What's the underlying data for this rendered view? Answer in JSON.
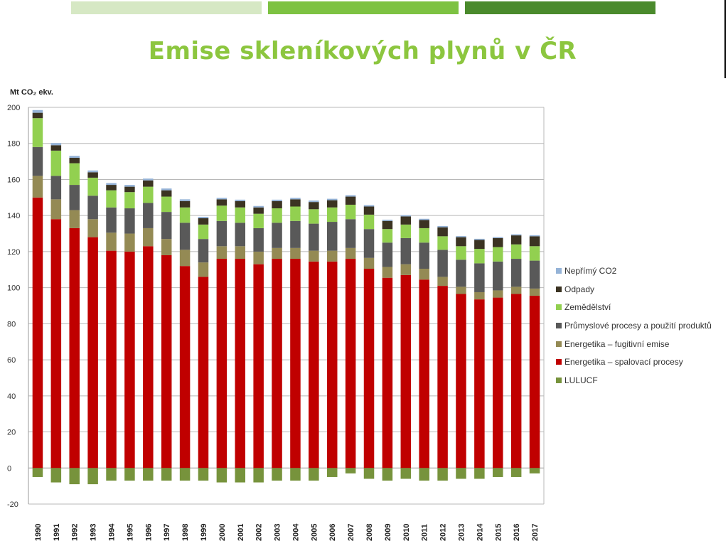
{
  "header": {
    "title": "Emise skleníkových plynů v ČR",
    "accent_colors": [
      "#d6e8c4",
      "#7dc242",
      "#4a8a2c"
    ]
  },
  "chart_data": {
    "type": "bar",
    "stacked": true,
    "title": "Emise skleníkových plynů v ČR",
    "ylabel": "Mt CO₂ ekv.",
    "xlabel": "",
    "ylim": [
      -20,
      200
    ],
    "yticks": [
      -20,
      0,
      20,
      40,
      60,
      80,
      100,
      120,
      140,
      160,
      180,
      200
    ],
    "grid": true,
    "legend_position": "right",
    "categories": [
      "1990",
      "1991",
      "1992",
      "1993",
      "1994",
      "1995",
      "1996",
      "1997",
      "1998",
      "1999",
      "2000",
      "2001",
      "2002",
      "2003",
      "2004",
      "2005",
      "2006",
      "2007",
      "2008",
      "2009",
      "2010",
      "2011",
      "2012",
      "2013",
      "2014",
      "2015",
      "2016",
      "2017"
    ],
    "series": [
      {
        "name": "LULUCF",
        "color": "#77933c",
        "values": [
          -5,
          -8,
          -9,
          -9,
          -7,
          -7,
          -7,
          -7,
          -7,
          -7,
          -8,
          -8,
          -8,
          -7,
          -7,
          -7,
          -5,
          -3,
          -6,
          -7,
          -6,
          -7,
          -7,
          -6,
          -6,
          -5,
          -5,
          -3
        ]
      },
      {
        "name": "Energetika – spalovací procesy",
        "color": "#c00000",
        "values": [
          150,
          138,
          133,
          128,
          120.5,
          120,
          123,
          118,
          112,
          106,
          116,
          116,
          113,
          116,
          116,
          114.5,
          114.5,
          116,
          110.5,
          105.5,
          107,
          104.5,
          101,
          96.5,
          93.5,
          94.5,
          96.5,
          95.5
        ]
      },
      {
        "name": "Energetika – fugitivní emise",
        "color": "#948a54",
        "values": [
          12,
          11,
          10,
          10,
          10,
          10,
          10,
          9,
          9,
          8,
          7,
          7,
          7,
          6,
          6,
          6,
          6,
          6,
          6,
          6,
          6,
          6,
          5,
          4,
          4,
          4,
          4,
          4
        ]
      },
      {
        "name": "Průmyslové procesy a použití produktů",
        "color": "#595959",
        "values": [
          16,
          13,
          14,
          13,
          14,
          14,
          14,
          15,
          15,
          13,
          14,
          13,
          13,
          14,
          15,
          15,
          16,
          16,
          16,
          13.5,
          14.5,
          14.5,
          15,
          15,
          16,
          16,
          15.5,
          15.5
        ]
      },
      {
        "name": "Zemědělství",
        "color": "#92d050",
        "values": [
          16,
          14,
          12,
          10,
          9.5,
          9,
          9,
          8.5,
          8.5,
          8,
          8.5,
          8.5,
          8,
          8,
          8,
          8,
          8,
          8,
          8,
          7.5,
          7.5,
          8,
          7.5,
          7.5,
          8,
          8,
          8,
          8
        ]
      },
      {
        "name": "Odpady",
        "color": "#3b3322",
        "values": [
          3,
          3,
          3,
          3,
          3,
          3,
          3.5,
          3.5,
          3.5,
          3.5,
          3.5,
          3.5,
          3.5,
          4,
          4,
          4,
          4,
          4.5,
          4.5,
          4.5,
          4.5,
          4.5,
          5,
          5,
          5,
          5,
          5,
          5.5
        ]
      },
      {
        "name": "Nepřímý CO2",
        "color": "#95b3d7",
        "values": [
          1.5,
          1.2,
          1.1,
          1,
          1,
          1,
          1,
          1,
          1,
          0.8,
          0.8,
          0.8,
          0.8,
          0.8,
          0.8,
          0.8,
          0.8,
          0.8,
          0.8,
          0.7,
          0.7,
          0.7,
          0.7,
          0.6,
          0.6,
          0.6,
          0.6,
          0.6
        ]
      }
    ],
    "legend_order": [
      "Nepřímý CO2",
      "Odpady",
      "Zemědělství",
      "Průmyslové procesy a použití produktů",
      "Energetika – fugitivní emise",
      "Energetika – spalovací procesy",
      "LULUCF"
    ]
  }
}
